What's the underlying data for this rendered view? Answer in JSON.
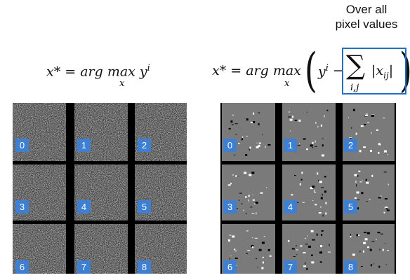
{
  "formula_left": {
    "lhs": "x* = arg max y",
    "superscript": "i",
    "subscript": "x"
  },
  "formula_right": {
    "lhs": "x* = arg max",
    "subscript": "x",
    "y_term": "y",
    "y_sup": "i",
    "minus": "−",
    "sum_symbol": "∑",
    "sum_subscript": "i,j",
    "abs_term": "|x",
    "abs_sub": "ij",
    "abs_close": "|"
  },
  "callout": {
    "line1": "Over all",
    "line2": "pixel values"
  },
  "left_grid_labels": [
    "0",
    "1",
    "2",
    "3",
    "4",
    "5",
    "6",
    "7",
    "8"
  ],
  "right_grid_labels": [
    "0",
    "1",
    "2",
    "3",
    "4",
    "5",
    "6",
    "7",
    "8"
  ],
  "colors": {
    "label_bg": "#3f7fd1",
    "highlight": "#1f6fc5"
  }
}
